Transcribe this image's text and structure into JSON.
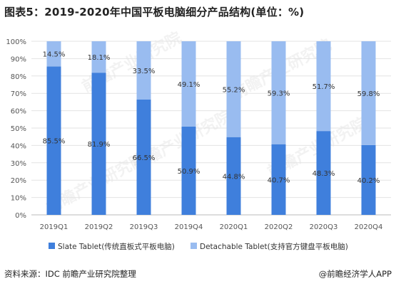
{
  "title": "图表5：2019-2020年中国平板电脑细分产品结构(单位：%)",
  "source": "资料来源：IDC 前瞻产业研究院整理",
  "brand": "@前瞻经济学人APP",
  "watermark": "前瞻产业研究院",
  "colors": {
    "slate": "#3f7fdc",
    "detachable": "#99bcf0",
    "grid": "#e3e3e3",
    "axis": "#bbbbbb"
  },
  "chart_data": {
    "type": "bar",
    "stacked": true,
    "categories": [
      "2019Q1",
      "2019Q2",
      "2019Q3",
      "2019Q4",
      "2020Q1",
      "2020Q2",
      "2020Q3",
      "2020Q4"
    ],
    "yticks": [
      "0%",
      "10%",
      "20%",
      "30%",
      "40%",
      "50%",
      "60%",
      "70%",
      "80%",
      "90%",
      "100%"
    ],
    "ylim": [
      0,
      100
    ],
    "series": [
      {
        "name": "Slate Tablet(传统直板式平板电脑)",
        "values": [
          85.5,
          81.9,
          66.5,
          50.9,
          44.8,
          40.7,
          48.3,
          40.2
        ],
        "labels": [
          "85.5%",
          "81.9%",
          "66.5%",
          "50.9%",
          "44.8%",
          "40.7%",
          "48.3%",
          "40.2%"
        ]
      },
      {
        "name": "Detachable Tablet(支持官方键盘平板电脑)",
        "values": [
          14.5,
          18.1,
          33.5,
          49.1,
          55.2,
          59.3,
          51.7,
          59.8
        ],
        "labels": [
          "14.5%",
          "18.1%",
          "33.5%",
          "49.1%",
          "55.2%",
          "59.3%",
          "51.7%",
          "59.8%"
        ]
      }
    ],
    "legend": "bottom",
    "grid": true
  }
}
